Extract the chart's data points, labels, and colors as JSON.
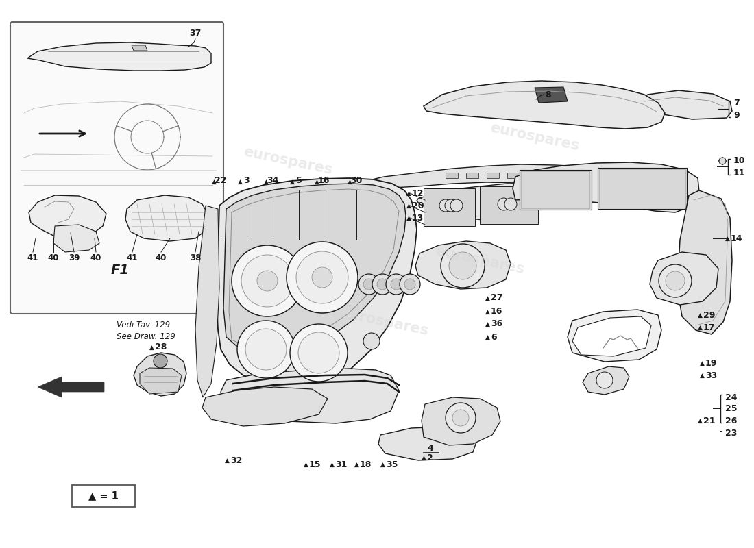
{
  "background_color": "#ffffff",
  "line_color": "#1a1a1a",
  "fill_light": "#f0f0f0",
  "fill_med": "#e0e0e0",
  "fill_dark": "#c8c8c8",
  "watermark_color": "#d8d8d8",
  "watermark_alpha": 0.5,
  "legend_text": "▲ = 1",
  "f1_label": "F1",
  "vedi_lines": [
    "Vedi Tav. 129",
    "See Draw. 129"
  ]
}
